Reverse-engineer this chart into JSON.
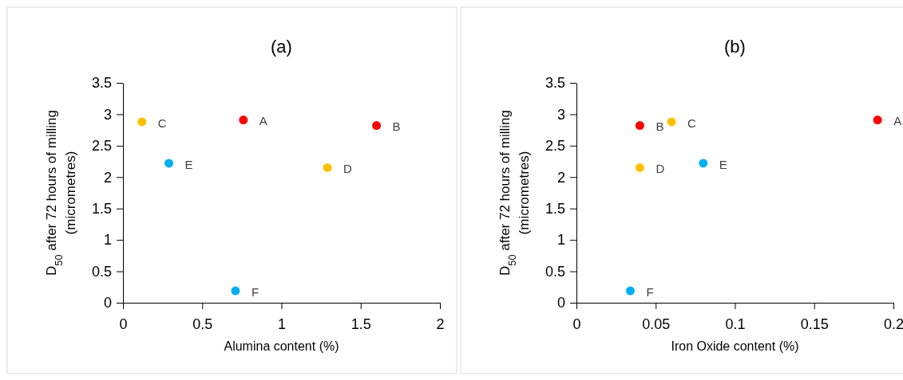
{
  "chart_data": [
    {
      "type": "scatter",
      "title": "(a)",
      "xlabel": "Alumina content (%)",
      "ylabel": "D$_{50}$ after 72 hours of milling (micrometres)",
      "x": [
        0.76,
        1.6,
        0.12,
        1.29,
        0.29,
        0.71
      ],
      "values": [
        2.91,
        2.82,
        2.88,
        2.15,
        2.22,
        0.19
      ],
      "colors": [
        "#ff0000",
        "#ff0000",
        "#ffc000",
        "#ffc000",
        "#00b0f0",
        "#00b0f0"
      ],
      "xlim": [
        0,
        2
      ],
      "xticks": [
        0,
        0.5,
        1,
        1.5,
        2
      ],
      "ylim": [
        0,
        3.5
      ],
      "yticks": [
        0,
        0.5,
        1,
        1.5,
        2,
        2.5,
        3,
        3.5
      ],
      "grid": false,
      "marker": "circle",
      "annotations": [
        {
          "text": "A",
          "x": 0.76,
          "y": 2.91
        },
        {
          "text": "B",
          "x": 1.6,
          "y": 2.82
        },
        {
          "text": "C",
          "x": 0.12,
          "y": 2.88
        },
        {
          "text": "D",
          "x": 1.29,
          "y": 2.15
        },
        {
          "text": "E",
          "x": 0.29,
          "y": 2.22
        },
        {
          "text": "F",
          "x": 0.71,
          "y": 0.19
        }
      ]
    },
    {
      "type": "scatter",
      "title": "(b)",
      "xlabel": "Iron Oxide content (%)",
      "ylabel": "D$_{50}$ after 72 hours of milling (micrometres)",
      "x": [
        0.19,
        0.04,
        0.06,
        0.04,
        0.08,
        0.034
      ],
      "values": [
        2.91,
        2.82,
        2.88,
        2.15,
        2.22,
        0.19
      ],
      "colors": [
        "#ff0000",
        "#ff0000",
        "#ffc000",
        "#ffc000",
        "#00b0f0",
        "#00b0f0"
      ],
      "xlim": [
        0,
        0.2
      ],
      "xticks": [
        0,
        0.05,
        0.1,
        0.15,
        0.2
      ],
      "ylim": [
        0,
        3.5
      ],
      "yticks": [
        0,
        0.5,
        1,
        1.5,
        2,
        2.5,
        3,
        3.5
      ],
      "grid": false,
      "marker": "circle",
      "annotations": [
        {
          "text": "A",
          "x": 0.19,
          "y": 2.91
        },
        {
          "text": "B",
          "x": 0.04,
          "y": 2.82
        },
        {
          "text": "C",
          "x": 0.06,
          "y": 2.88
        },
        {
          "text": "D",
          "x": 0.04,
          "y": 2.15
        },
        {
          "text": "E",
          "x": 0.08,
          "y": 2.22
        },
        {
          "text": "F",
          "x": 0.034,
          "y": 0.19
        }
      ]
    }
  ]
}
